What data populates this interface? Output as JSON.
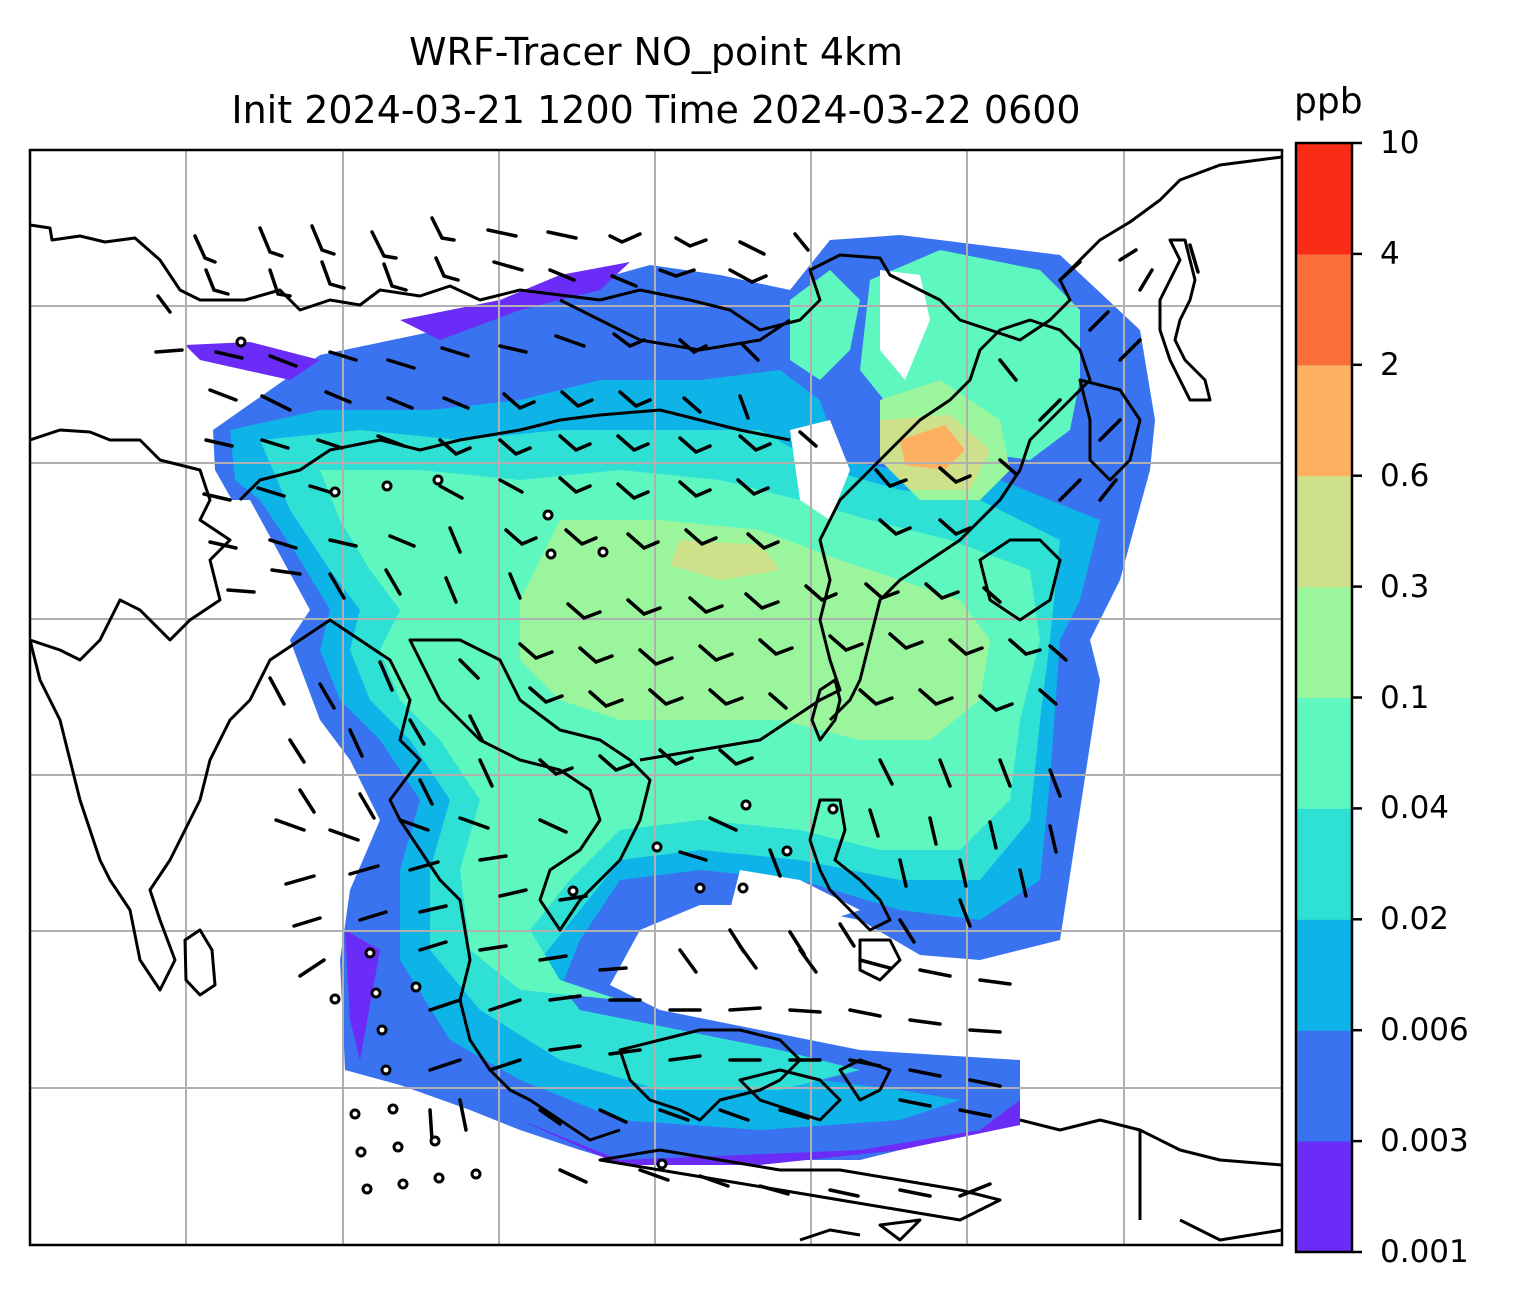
{
  "title": {
    "line1": "WRF-Tracer NO_point 4km",
    "line2": "Init 2024-03-21 1200 Time 2024-03-22 0600"
  },
  "colorbar": {
    "unit": "ppb",
    "ticks": [
      "0.001",
      "0.003",
      "0.006",
      "0.02",
      "0.04",
      "0.1",
      "0.3",
      "0.6",
      "2",
      "4",
      "10"
    ],
    "colors": [
      "#6a2cf6",
      "#3a73f0",
      "#0eb3e8",
      "#2fe0d5",
      "#5ff7c0",
      "#9af59c",
      "#cfe08a",
      "#fdb060",
      "#fb6f3b",
      "#f92c17"
    ]
  },
  "map": {
    "fill_colors": {
      "level_0_003": "#3a73f0",
      "level_0_001": "#6a2cf6",
      "level_0_04": "#5ff7c0",
      "level_0_02": "#2fe0d5",
      "level_0_006": "#0eb3e8",
      "level_0_1": "#9af59c",
      "level_0_3": "#cfe08a",
      "level_0_6": "#fdb060"
    },
    "gridline_color": "#b0b0b0",
    "coastline_color": "#000000"
  }
}
